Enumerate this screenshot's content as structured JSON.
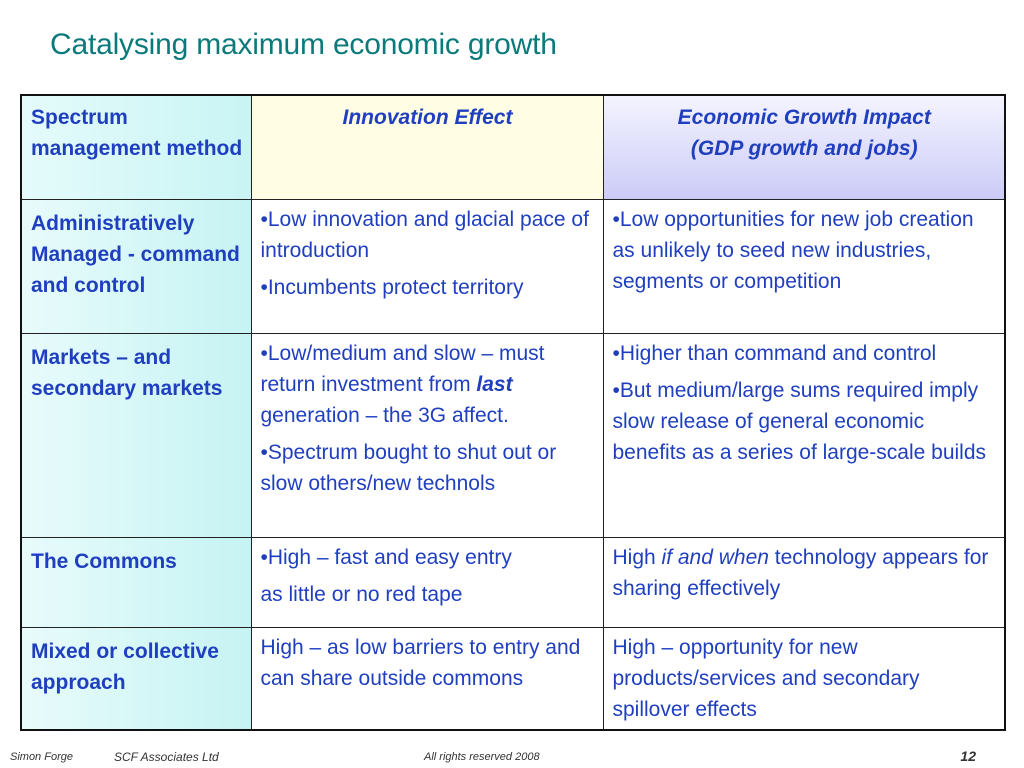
{
  "title": "Catalysing maximum economic growth",
  "table": {
    "headers": {
      "method": "Spectrum management method",
      "innovation_line1": "Innovation Effect",
      "growth_line1": "Economic Growth Impact",
      "growth_line2": "(GDP growth and jobs)"
    },
    "rows": [
      {
        "method": "Administratively Managed  - command and control",
        "innovation_1": "•Low innovation and glacial pace of introduction",
        "innovation_2": "•Incumbents protect territory",
        "growth_1": "•Low opportunities for new job creation as unlikely to seed new industries, segments or competition"
      },
      {
        "method": "Markets – and secondary markets",
        "innovation_1a": "•Low/medium and slow – must return investment from ",
        "innovation_1b": "last",
        "innovation_1c": " generation – the 3G affect.",
        "innovation_2": "•Spectrum bought to shut out or slow others/new technols",
        "growth_1": "•Higher than command and control",
        "growth_2": "•But medium/large sums required imply slow release of general economic benefits as a series of large-scale builds"
      },
      {
        "method": "The Commons",
        "innovation_1": "•High – fast and easy entry",
        "innovation_2": "as little or no red tape",
        "growth_1a": "High ",
        "growth_1b": "if and when",
        "growth_1c": " technology appears for sharing effectively"
      },
      {
        "method": "Mixed or collective approach",
        "innovation_1": "High – as low barriers to entry and can share outside commons",
        "growth_1": "High – opportunity for new products/services and secondary spillover effects"
      }
    ]
  },
  "footer": {
    "author": "Simon Forge",
    "company": "SCF  Associates Ltd",
    "rights": "All rights reserved 2008",
    "page": "12"
  }
}
